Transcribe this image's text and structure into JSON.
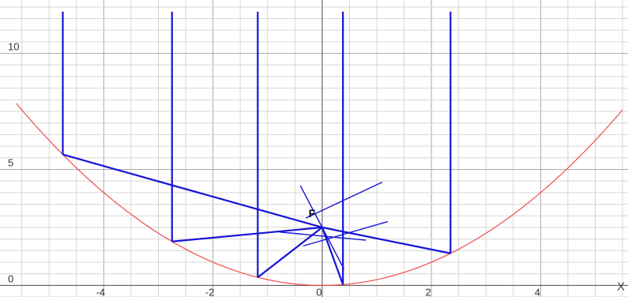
{
  "axes": {
    "x_name": "X",
    "x_ticks": [
      {
        "value": -4,
        "label": "-4"
      },
      {
        "value": -2,
        "label": "-2"
      },
      {
        "value": 0,
        "label": "0"
      },
      {
        "value": 2,
        "label": "2"
      },
      {
        "value": 4,
        "label": "4"
      }
    ],
    "y_ticks": [
      {
        "value": 0,
        "label": "0"
      },
      {
        "value": 5,
        "label": "5"
      },
      {
        "value": 10,
        "label": "10"
      }
    ],
    "xlim": [
      -5.9,
      5.6
    ],
    "ylim": [
      -0.5,
      12.3
    ],
    "grid": "on"
  },
  "focus": {
    "label": "F",
    "x": 0,
    "y": 2.5
  },
  "parabola": {
    "equation": "y = x^2 / 4",
    "color": "#ef4c4c",
    "x_range": [
      -5.6,
      5.5
    ]
  },
  "rays": {
    "color": "#1515d6",
    "top_y": 11.8,
    "incident_x": [
      -4.75,
      -2.75,
      -1.18,
      0.38,
      2.35
    ]
  },
  "tangent_segments": [
    {
      "from": [
        -0.4,
        4.3
      ],
      "to": [
        0.4,
        0.7
      ]
    },
    {
      "from": [
        -0.78,
        2.3
      ],
      "to": [
        0.8,
        1.95
      ]
    },
    {
      "from": [
        -0.35,
        1.7
      ],
      "to": [
        1.2,
        2.75
      ]
    },
    {
      "from": [
        -0.3,
        2.9
      ],
      "to": [
        1.1,
        4.45
      ]
    }
  ]
}
